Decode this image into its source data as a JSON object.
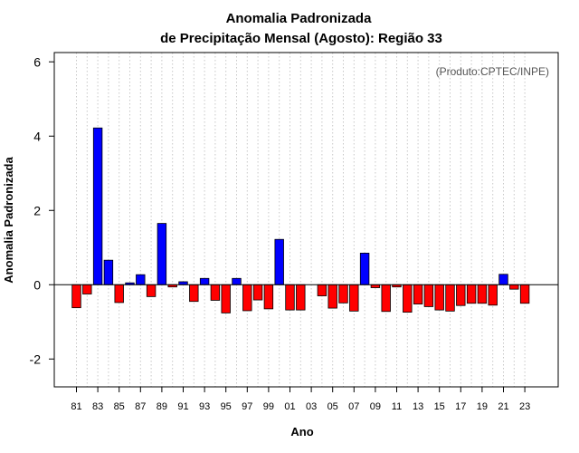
{
  "chart_data": {
    "type": "bar",
    "title_line1": "Anomalia Padronizada",
    "title_line2": "de Precipitação Mensal (Agosto): Região 33",
    "annotation": "(Produto:CPTEC/INPE)",
    "xlabel": "Ano",
    "ylabel": "Anomalia Padronizada",
    "ylim": [
      -2.75,
      6.25
    ],
    "yticks": [
      "-2",
      "0",
      "2",
      "4",
      "6"
    ],
    "ytick_values": [
      -2,
      0,
      2,
      4,
      6
    ],
    "xtick_labels": [
      "81",
      "83",
      "85",
      "87",
      "89",
      "91",
      "93",
      "95",
      "97",
      "99",
      "01",
      "03",
      "05",
      "07",
      "09",
      "11",
      "13",
      "15",
      "17",
      "19",
      "21",
      "23"
    ],
    "grid": "vertical dotted",
    "colors": {
      "positive": "#0000ff",
      "negative": "#ff0000",
      "outline": "#000000",
      "grid": "#c8c8c8"
    },
    "categories": [
      "1981",
      "1982",
      "1983",
      "1984",
      "1985",
      "1986",
      "1987",
      "1988",
      "1989",
      "1990",
      "1991",
      "1992",
      "1993",
      "1994",
      "1995",
      "1996",
      "1997",
      "1998",
      "1999",
      "2000",
      "2001",
      "2002",
      "2003",
      "2004",
      "2005",
      "2006",
      "2007",
      "2008",
      "2009",
      "2010",
      "2011",
      "2012",
      "2013",
      "2014",
      "2015",
      "2016",
      "2017",
      "2018",
      "2019",
      "2020",
      "2021",
      "2022",
      "2023"
    ],
    "values": [
      -0.62,
      -0.25,
      4.22,
      0.66,
      -0.48,
      0.05,
      0.27,
      -0.32,
      1.65,
      -0.06,
      0.08,
      -0.45,
      0.17,
      -0.42,
      -0.76,
      0.17,
      -0.7,
      -0.41,
      -0.65,
      1.22,
      -0.68,
      -0.68,
      0.0,
      -0.3,
      -0.63,
      -0.49,
      -0.71,
      0.85,
      -0.08,
      -0.72,
      -0.06,
      -0.74,
      -0.52,
      -0.59,
      -0.68,
      -0.71,
      -0.56,
      -0.5,
      -0.5,
      -0.55,
      0.28,
      -0.12,
      -0.5
    ]
  }
}
